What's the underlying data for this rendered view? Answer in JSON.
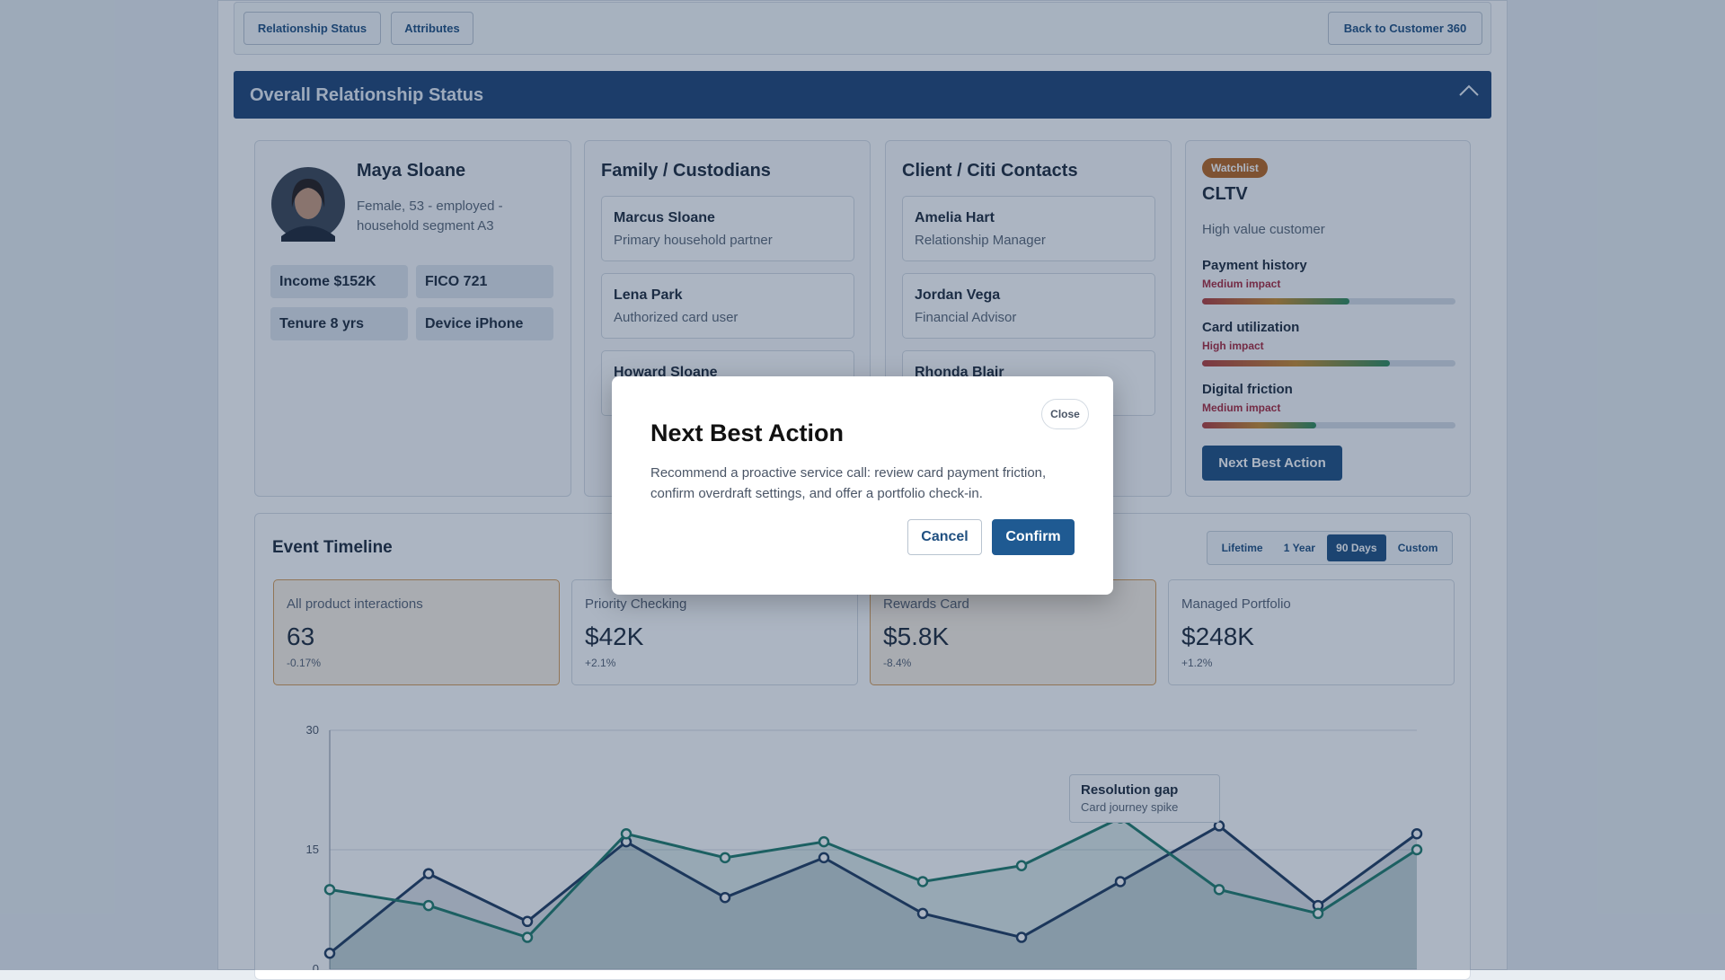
{
  "nav": {
    "tabs": [
      "Relationship Status",
      "Attributes"
    ],
    "back": "Back to Customer 360"
  },
  "section": {
    "title": "Overall Relationship Status"
  },
  "profile": {
    "name": "Maya Sloane",
    "description": "Female, 53 - employed - household segment A3",
    "chips": [
      "Income $152K",
      "FICO 721",
      "Tenure 8 yrs",
      "Device iPhone"
    ]
  },
  "family": {
    "title": "Family / Custodians",
    "members": [
      {
        "name": "Marcus Sloane",
        "role": "Primary household partner"
      },
      {
        "name": "Lena Park",
        "role": "Authorized card user"
      },
      {
        "name": "Howard Sloane"
      }
    ]
  },
  "contacts": {
    "title": "Client / Citi Contacts",
    "members": [
      {
        "name": "Amelia Hart",
        "role": "Relationship Manager"
      },
      {
        "name": "Jordan Vega",
        "role": "Financial Advisor"
      },
      {
        "name": "Rhonda Blair"
      }
    ]
  },
  "cltv": {
    "badge": "Watchlist",
    "title": "CLTV",
    "subtitle": "High value customer",
    "factors": [
      {
        "name": "Payment history",
        "impact": "Medium impact",
        "level": 58
      },
      {
        "name": "Card utilization",
        "impact": "High impact",
        "level": 74
      },
      {
        "name": "Digital friction",
        "impact": "Medium impact",
        "level": 45
      }
    ],
    "button": "Next Best Action"
  },
  "timeline": {
    "title": "Event Timeline",
    "ranges": [
      "Lifetime",
      "1 Year",
      "90 Days",
      "Custom"
    ],
    "active_range": 2,
    "stats": [
      {
        "label": "All product interactions",
        "value": "63",
        "delta": "-0.17%",
        "highlight": true
      },
      {
        "label": "Priority Checking",
        "value": "$42K",
        "delta": "+2.1%",
        "highlight": false
      },
      {
        "label": "Rewards Card",
        "value": "$5.8K",
        "delta": "-8.4%",
        "highlight": true
      },
      {
        "label": "Managed Portfolio",
        "value": "$248K",
        "delta": "+1.2%",
        "highlight": false
      }
    ]
  },
  "chart_data": {
    "type": "line",
    "ylim": [
      0,
      30
    ],
    "yticks": [
      0,
      15,
      30
    ],
    "grid": true,
    "series": [
      {
        "color": "#1f3a5f",
        "values": [
          2,
          12,
          6,
          16,
          9,
          14,
          7,
          4,
          11,
          18,
          8,
          17
        ]
      },
      {
        "color": "#1f7a6a",
        "values": [
          10,
          8,
          4,
          17,
          14,
          16,
          11,
          13,
          19,
          10,
          7,
          15
        ]
      }
    ],
    "annotation": {
      "title": "Resolution gap",
      "text": "Card journey spike"
    }
  },
  "modal": {
    "title": "Next Best Action",
    "close": "Close",
    "text": "Recommend a proactive service call: review card payment friction, confirm overdraft settings, and offer a portfolio check-in.",
    "cancel": "Cancel",
    "confirm": "Confirm"
  }
}
